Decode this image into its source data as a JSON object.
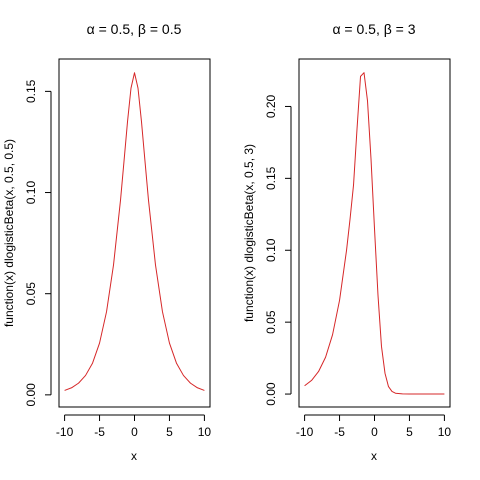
{
  "chart_data": [
    {
      "type": "line",
      "title": "α = 0.5,   β = 0.5",
      "xlabel": "x",
      "ylabel": "function(x) dlogisticBeta(x, 0.5, 0.5)",
      "xlim": [
        -10.8,
        10.8
      ],
      "ylim": [
        -0.006,
        0.166
      ],
      "xticks": [
        {
          "value": -10,
          "label": "-10"
        },
        {
          "value": -5,
          "label": "-5"
        },
        {
          "value": 0,
          "label": "0"
        },
        {
          "value": 5,
          "label": "5"
        },
        {
          "value": 10,
          "label": "10"
        }
      ],
      "yticks": [
        {
          "value": 0.0,
          "label": "0.00"
        },
        {
          "value": 0.05,
          "label": "0.05"
        },
        {
          "value": 0.1,
          "label": "0.10"
        },
        {
          "value": 0.15,
          "label": "0.15"
        }
      ],
      "grid": false,
      "series": [
        {
          "color": "#d62728",
          "x": [
            -10,
            -9,
            -8,
            -7,
            -6,
            -5,
            -4,
            -3,
            -2,
            -1.5,
            -1,
            -0.5,
            0,
            0.5,
            1,
            1.5,
            2,
            3,
            4,
            5,
            6,
            7,
            8,
            9,
            10
          ],
          "y": [
            0.0022,
            0.0035,
            0.0058,
            0.0096,
            0.0157,
            0.0256,
            0.0411,
            0.0643,
            0.0963,
            0.1155,
            0.135,
            0.1516,
            0.1592,
            0.1516,
            0.135,
            0.1155,
            0.0963,
            0.0643,
            0.0411,
            0.0256,
            0.0157,
            0.0096,
            0.0058,
            0.0035,
            0.0022
          ]
        }
      ]
    },
    {
      "type": "line",
      "title": "α = 0.5,   β = 3",
      "xlabel": "x",
      "ylabel": "function(x) dlogisticBeta(x, 0.5, 3)",
      "xlim": [
        -10.8,
        10.8
      ],
      "ylim": [
        -0.009,
        0.233
      ],
      "xticks": [
        {
          "value": -10,
          "label": "-10"
        },
        {
          "value": -5,
          "label": "-5"
        },
        {
          "value": 0,
          "label": "0"
        },
        {
          "value": 5,
          "label": "5"
        },
        {
          "value": 10,
          "label": "10"
        }
      ],
      "yticks": [
        {
          "value": 0.0,
          "label": "0.00"
        },
        {
          "value": 0.05,
          "label": "0.05"
        },
        {
          "value": 0.1,
          "label": "0.10"
        },
        {
          "value": 0.15,
          "label": "0.15"
        },
        {
          "value": 0.2,
          "label": "0.20"
        }
      ],
      "grid": false,
      "series": [
        {
          "color": "#d62728",
          "x": [
            -10,
            -9,
            -8,
            -7,
            -6,
            -5,
            -4,
            -3.5,
            -3,
            -2.5,
            -2,
            -1.5,
            -1,
            -0.5,
            0,
            0.5,
            1,
            1.5,
            2,
            2.5,
            3,
            4,
            5,
            6,
            7,
            8,
            9,
            10
          ],
          "y": [
            0.0058,
            0.0095,
            0.0157,
            0.0256,
            0.0413,
            0.0652,
            0.1,
            0.1216,
            0.1454,
            0.1844,
            0.2209,
            0.2235,
            0.2038,
            0.1636,
            0.115,
            0.0686,
            0.0331,
            0.0145,
            0.0052,
            0.0018,
            0.0006,
            0.0001,
            0.0,
            0.0,
            0.0,
            0.0,
            0.0,
            0.0
          ]
        }
      ]
    }
  ]
}
